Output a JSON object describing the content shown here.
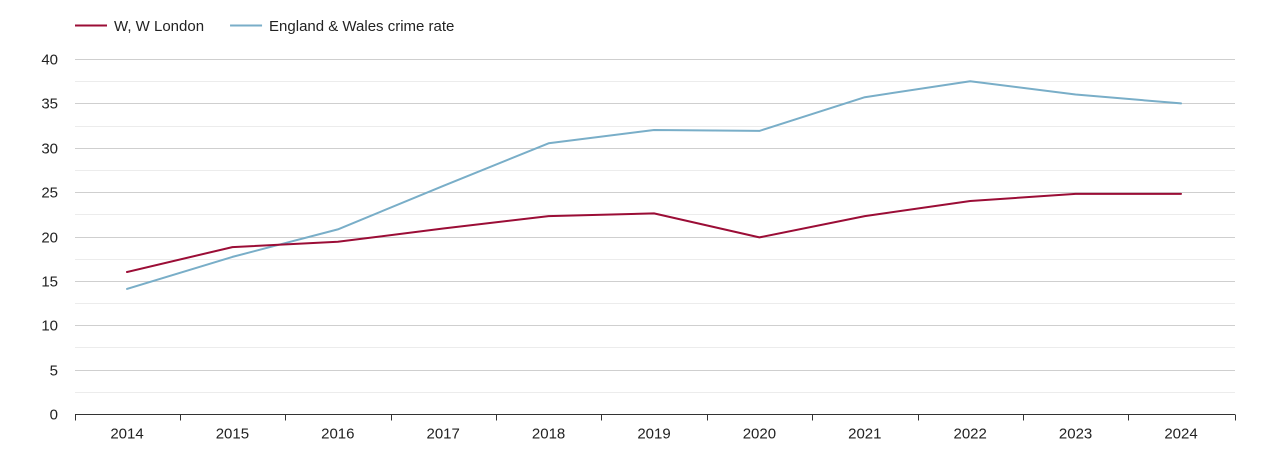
{
  "chart_data": {
    "type": "line",
    "title": "",
    "xlabel": "",
    "ylabel": "",
    "x": [
      2014,
      2015,
      2016,
      2017,
      2018,
      2019,
      2020,
      2021,
      2022,
      2023,
      2024
    ],
    "ylim": [
      0,
      40
    ],
    "yticks": [
      0,
      5,
      10,
      15,
      20,
      25,
      30,
      35,
      40
    ],
    "grid": true,
    "legend_position": "top-left",
    "series": [
      {
        "name": "W, W London",
        "color": "#9b0d36",
        "values": [
          16.0,
          18.8,
          19.4,
          20.9,
          22.3,
          22.6,
          19.9,
          22.3,
          24.0,
          24.8,
          24.8
        ]
      },
      {
        "name": "England & Wales crime rate",
        "color": "#79aec8",
        "values": [
          14.1,
          17.7,
          20.8,
          25.7,
          30.5,
          32.0,
          31.9,
          35.7,
          37.5,
          36.0,
          35.0
        ]
      }
    ]
  }
}
